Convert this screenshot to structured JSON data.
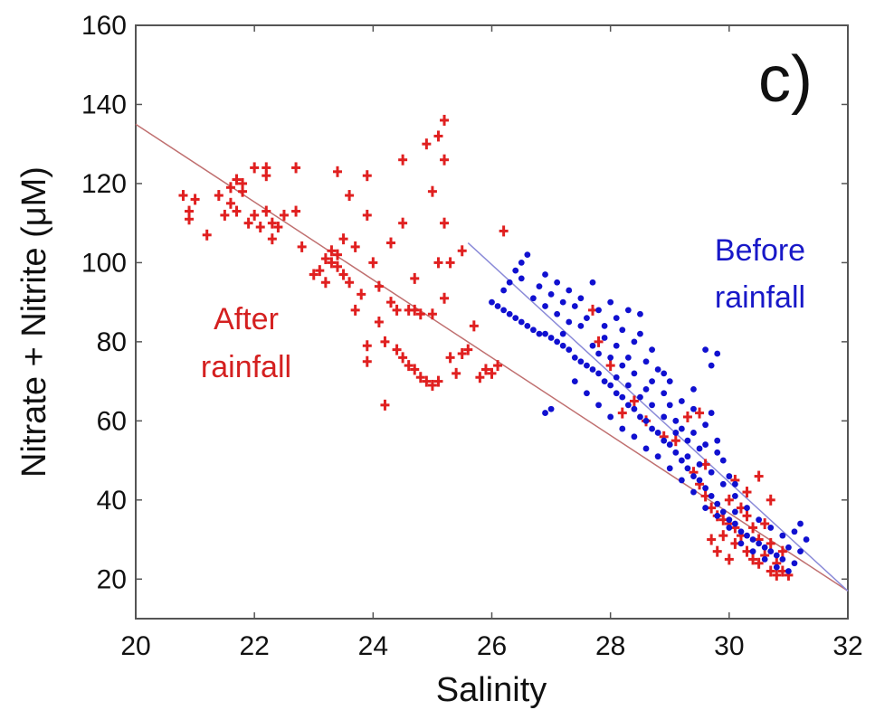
{
  "chart_data": {
    "type": "scatter",
    "panel_label": "c)",
    "xlabel": "Salinity",
    "ylabel": "Nitrate + Nitrite (μM)",
    "xlim": [
      20,
      32
    ],
    "ylim": [
      10,
      160
    ],
    "x_ticks": [
      "20",
      "22",
      "24",
      "26",
      "28",
      "30",
      "32"
    ],
    "y_ticks": [
      "20",
      "40",
      "60",
      "80",
      "100",
      "120",
      "140",
      "160"
    ],
    "grid": false,
    "annotations": [
      {
        "text_lines": [
          "After",
          "rainfall"
        ],
        "color": "#d42020",
        "series": "after"
      },
      {
        "text_lines": [
          "Before",
          "rainfall"
        ],
        "color": "#1818c8",
        "series": "before"
      }
    ],
    "series": [
      {
        "key": "after",
        "marker": "plus",
        "color": "#e02020",
        "points": [
          [
            20.8,
            117
          ],
          [
            20.9,
            113
          ],
          [
            20.9,
            111
          ],
          [
            21.0,
            116
          ],
          [
            21.2,
            107
          ],
          [
            21.4,
            117
          ],
          [
            21.5,
            112
          ],
          [
            21.6,
            115
          ],
          [
            21.6,
            119
          ],
          [
            21.7,
            121
          ],
          [
            21.7,
            113
          ],
          [
            21.8,
            120
          ],
          [
            21.8,
            118
          ],
          [
            21.9,
            110
          ],
          [
            22.0,
            124
          ],
          [
            22.0,
            112
          ],
          [
            22.1,
            109
          ],
          [
            22.2,
            122
          ],
          [
            22.2,
            113
          ],
          [
            22.3,
            110
          ],
          [
            22.3,
            106
          ],
          [
            22.4,
            109
          ],
          [
            22.2,
            124
          ],
          [
            22.7,
            124
          ],
          [
            22.5,
            112
          ],
          [
            22.7,
            113
          ],
          [
            22.8,
            104
          ],
          [
            23.0,
            97
          ],
          [
            23.1,
            98
          ],
          [
            23.2,
            95
          ],
          [
            23.3,
            103
          ],
          [
            23.3,
            100
          ],
          [
            23.4,
            102
          ],
          [
            23.4,
            99
          ],
          [
            23.5,
            97
          ],
          [
            23.2,
            101
          ],
          [
            23.5,
            106
          ],
          [
            23.6,
            95
          ],
          [
            23.4,
            123
          ],
          [
            23.6,
            117
          ],
          [
            23.7,
            104
          ],
          [
            23.7,
            88
          ],
          [
            23.8,
            92
          ],
          [
            23.9,
            79
          ],
          [
            23.9,
            75
          ],
          [
            23.9,
            122
          ],
          [
            23.9,
            112
          ],
          [
            24.0,
            100
          ],
          [
            24.1,
            94
          ],
          [
            24.1,
            85
          ],
          [
            24.2,
            80
          ],
          [
            24.2,
            64
          ],
          [
            24.3,
            105
          ],
          [
            24.3,
            90
          ],
          [
            24.4,
            88
          ],
          [
            24.4,
            78
          ],
          [
            24.5,
            126
          ],
          [
            24.5,
            76
          ],
          [
            24.6,
            88
          ],
          [
            24.6,
            74
          ],
          [
            24.7,
            88
          ],
          [
            24.7,
            73
          ],
          [
            24.8,
            87
          ],
          [
            24.8,
            71
          ],
          [
            24.9,
            70
          ],
          [
            24.9,
            130
          ],
          [
            25.0,
            69
          ],
          [
            25.0,
            87
          ],
          [
            25.0,
            118
          ],
          [
            25.1,
            70
          ],
          [
            25.1,
            132
          ],
          [
            25.2,
            136
          ],
          [
            25.2,
            126
          ],
          [
            25.2,
            110
          ],
          [
            25.2,
            91
          ],
          [
            25.3,
            100
          ],
          [
            25.3,
            76
          ],
          [
            25.4,
            72
          ],
          [
            25.5,
            103
          ],
          [
            25.5,
            77
          ],
          [
            25.6,
            78
          ],
          [
            25.7,
            84
          ],
          [
            25.8,
            71
          ],
          [
            25.9,
            73
          ],
          [
            26.0,
            72
          ],
          [
            26.1,
            74
          ],
          [
            26.2,
            108
          ],
          [
            24.5,
            110
          ],
          [
            24.7,
            96
          ],
          [
            25.1,
            100
          ],
          [
            27.7,
            88
          ],
          [
            27.8,
            80
          ],
          [
            28.0,
            74
          ],
          [
            28.2,
            62
          ],
          [
            28.4,
            65
          ],
          [
            28.6,
            60
          ],
          [
            28.9,
            56
          ],
          [
            29.1,
            55
          ],
          [
            29.4,
            47
          ],
          [
            29.5,
            44
          ],
          [
            29.6,
            41
          ],
          [
            29.7,
            38
          ],
          [
            29.8,
            36
          ],
          [
            29.9,
            35
          ],
          [
            30.0,
            34
          ],
          [
            30.0,
            40
          ],
          [
            30.1,
            33
          ],
          [
            30.1,
            29
          ],
          [
            30.2,
            31
          ],
          [
            30.2,
            38
          ],
          [
            30.3,
            27
          ],
          [
            30.3,
            36
          ],
          [
            30.4,
            25
          ],
          [
            30.4,
            33
          ],
          [
            30.5,
            30
          ],
          [
            30.5,
            24
          ],
          [
            30.6,
            26
          ],
          [
            30.6,
            34
          ],
          [
            30.7,
            22
          ],
          [
            30.7,
            29
          ],
          [
            30.8,
            24
          ],
          [
            30.8,
            21
          ],
          [
            30.9,
            22
          ],
          [
            30.9,
            27
          ],
          [
            31.0,
            21
          ],
          [
            30.1,
            45
          ],
          [
            30.3,
            42
          ],
          [
            30.5,
            46
          ],
          [
            30.7,
            40
          ],
          [
            29.9,
            31
          ],
          [
            29.7,
            30
          ],
          [
            29.8,
            27
          ],
          [
            30.0,
            25
          ],
          [
            29.6,
            49
          ],
          [
            29.3,
            61
          ],
          [
            29.5,
            62
          ]
        ]
      },
      {
        "key": "before",
        "marker": "dot",
        "color": "#1010d0",
        "points": [
          [
            26.0,
            90
          ],
          [
            26.1,
            89
          ],
          [
            26.2,
            88
          ],
          [
            26.3,
            87
          ],
          [
            26.4,
            86
          ],
          [
            26.5,
            85
          ],
          [
            26.6,
            84
          ],
          [
            26.7,
            83
          ],
          [
            26.8,
            82
          ],
          [
            26.9,
            82
          ],
          [
            27.0,
            81
          ],
          [
            27.1,
            80
          ],
          [
            27.2,
            79
          ],
          [
            27.3,
            78
          ],
          [
            27.4,
            76
          ],
          [
            27.5,
            75
          ],
          [
            27.6,
            74
          ],
          [
            27.7,
            73
          ],
          [
            27.8,
            72
          ],
          [
            27.9,
            70
          ],
          [
            28.0,
            69
          ],
          [
            28.1,
            67
          ],
          [
            28.2,
            66
          ],
          [
            28.3,
            64
          ],
          [
            28.4,
            63
          ],
          [
            28.5,
            61
          ],
          [
            28.6,
            60
          ],
          [
            28.7,
            58
          ],
          [
            28.8,
            57
          ],
          [
            28.9,
            55
          ],
          [
            29.0,
            54
          ],
          [
            29.1,
            52
          ],
          [
            29.2,
            50
          ],
          [
            29.3,
            48
          ],
          [
            29.4,
            46
          ],
          [
            29.5,
            45
          ],
          [
            29.6,
            43
          ],
          [
            29.7,
            41
          ],
          [
            29.8,
            39
          ],
          [
            29.9,
            37
          ],
          [
            30.0,
            35
          ],
          [
            30.1,
            34
          ],
          [
            30.2,
            32
          ],
          [
            30.3,
            31
          ],
          [
            30.4,
            30
          ],
          [
            30.5,
            29
          ],
          [
            30.6,
            28
          ],
          [
            30.7,
            27
          ],
          [
            30.8,
            26
          ],
          [
            30.9,
            25
          ],
          [
            26.2,
            93
          ],
          [
            26.3,
            95
          ],
          [
            26.5,
            100
          ],
          [
            26.6,
            102
          ],
          [
            26.5,
            96
          ],
          [
            26.8,
            94
          ],
          [
            26.9,
            97
          ],
          [
            27.0,
            92
          ],
          [
            27.1,
            95
          ],
          [
            27.2,
            90
          ],
          [
            27.3,
            93
          ],
          [
            27.4,
            89
          ],
          [
            27.5,
            91
          ],
          [
            27.6,
            86
          ],
          [
            27.7,
            95
          ],
          [
            27.8,
            88
          ],
          [
            27.9,
            84
          ],
          [
            28.0,
            90
          ],
          [
            28.1,
            86
          ],
          [
            28.2,
            83
          ],
          [
            28.3,
            88
          ],
          [
            28.4,
            80
          ],
          [
            28.5,
            87
          ],
          [
            28.6,
            75
          ],
          [
            28.7,
            70
          ],
          [
            28.8,
            73
          ],
          [
            28.9,
            67
          ],
          [
            29.0,
            64
          ],
          [
            29.1,
            60
          ],
          [
            29.2,
            58
          ],
          [
            29.3,
            55
          ],
          [
            29.4,
            57
          ],
          [
            29.5,
            53
          ],
          [
            29.6,
            59
          ],
          [
            29.7,
            62
          ],
          [
            29.8,
            55
          ],
          [
            29.9,
            50
          ],
          [
            30.0,
            46
          ],
          [
            30.1,
            44
          ],
          [
            29.8,
            77
          ],
          [
            29.7,
            74
          ],
          [
            29.6,
            78
          ],
          [
            29.4,
            68
          ],
          [
            29.2,
            65
          ],
          [
            29.0,
            70
          ],
          [
            28.9,
            72
          ],
          [
            28.7,
            78
          ],
          [
            28.5,
            82
          ],
          [
            28.3,
            76
          ],
          [
            28.1,
            79
          ],
          [
            27.9,
            81
          ],
          [
            27.7,
            79
          ],
          [
            27.5,
            84
          ],
          [
            27.3,
            85
          ],
          [
            27.1,
            87
          ],
          [
            26.9,
            89
          ],
          [
            26.7,
            91
          ],
          [
            26.4,
            98
          ],
          [
            27.0,
            63
          ],
          [
            26.9,
            62
          ],
          [
            27.4,
            70
          ],
          [
            27.6,
            67
          ],
          [
            27.8,
            64
          ],
          [
            28.0,
            61
          ],
          [
            28.2,
            58
          ],
          [
            28.4,
            56
          ],
          [
            28.6,
            53
          ],
          [
            28.8,
            51
          ],
          [
            29.0,
            48
          ],
          [
            29.2,
            45
          ],
          [
            29.4,
            42
          ],
          [
            29.6,
            38
          ],
          [
            29.8,
            36
          ],
          [
            30.0,
            33
          ],
          [
            30.2,
            29
          ],
          [
            30.4,
            27
          ],
          [
            30.6,
            25
          ],
          [
            30.8,
            23
          ],
          [
            31.0,
            22
          ],
          [
            31.1,
            24
          ],
          [
            31.2,
            27
          ],
          [
            31.3,
            30
          ],
          [
            31.2,
            34
          ],
          [
            31.1,
            32
          ],
          [
            31.0,
            28
          ],
          [
            30.9,
            31
          ],
          [
            30.7,
            33
          ],
          [
            30.5,
            35
          ],
          [
            30.3,
            38
          ],
          [
            30.1,
            37
          ],
          [
            28.1,
            71
          ],
          [
            28.3,
            69
          ],
          [
            28.5,
            66
          ],
          [
            28.7,
            64
          ],
          [
            28.9,
            61
          ],
          [
            29.1,
            57
          ],
          [
            28.6,
            68
          ],
          [
            28.4,
            72
          ],
          [
            28.2,
            74
          ],
          [
            28.0,
            76
          ],
          [
            27.8,
            77
          ],
          [
            27.2,
            82
          ],
          [
            29.3,
            51
          ],
          [
            29.5,
            49
          ],
          [
            29.7,
            47
          ],
          [
            29.9,
            44
          ],
          [
            30.1,
            41
          ],
          [
            29.8,
            52
          ],
          [
            29.6,
            54
          ],
          [
            29.4,
            63
          ]
        ]
      }
    ],
    "fit_lines": [
      {
        "key": "after-fit",
        "color": "#c07070",
        "x": [
          20,
          32
        ],
        "y": [
          135,
          17
        ]
      },
      {
        "key": "before-fit",
        "color": "#8a8ad8",
        "x": [
          25.6,
          32
        ],
        "y": [
          105,
          17
        ]
      }
    ]
  }
}
